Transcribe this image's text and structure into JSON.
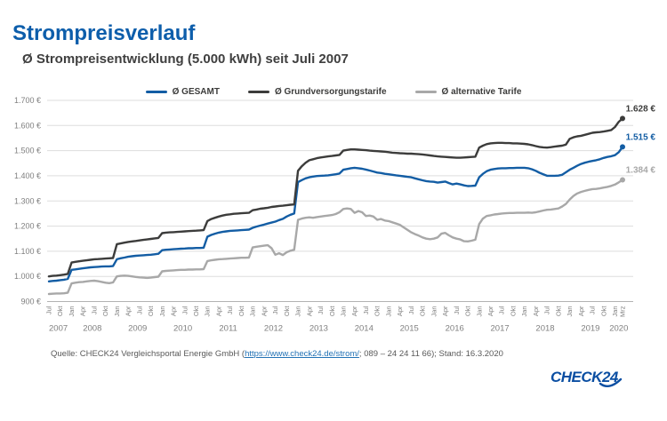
{
  "header": {
    "title": "Strompreisverlauf",
    "subtitle": "Ø Strompreisentwicklung (5.000 kWh) seit Juli 2007"
  },
  "source": {
    "prefix": "Quelle: CHECK24 Vergleichsportal Energie GmbH (",
    "link": "https://www.check24.de/strom/",
    "suffix": "; 089 – 24 24 11 66); Stand: 16.3.2020"
  },
  "logo": {
    "text": "CHECK24",
    "color": "#0a4ea2"
  },
  "colors": {
    "title_blue": "#0d5eab",
    "grid_line": "#dddddd",
    "axis_line": "#b3b3b3",
    "tick_text": "#7f7f7f",
    "subtitle_text": "#3f3f3f"
  },
  "chart_data": {
    "type": "line",
    "title": "Ø Strompreisentwicklung (5.000 kWh) seit Juli 2007",
    "x_start": "Jul 2007",
    "x_end": "Mrz 2020",
    "months_count": 153,
    "grid": "horizontal",
    "legend_position": "top",
    "y_axis": {
      "min": 900,
      "max": 1700,
      "step": 100,
      "unit": "€",
      "tick_labels": [
        "1.700 €",
        "1.600 €",
        "1.500 €",
        "1.400 €",
        "1.300 €",
        "1.200 €",
        "1.100 €",
        "1.000 €",
        "900 €"
      ]
    },
    "x_ticks": [
      [
        0,
        "Jul"
      ],
      [
        3,
        "Okt"
      ],
      [
        6,
        "Jan"
      ],
      [
        9,
        "Apr"
      ],
      [
        12,
        "Jul"
      ],
      [
        15,
        "Okt"
      ],
      [
        18,
        "Jan"
      ],
      [
        21,
        "Apr"
      ],
      [
        24,
        "Jul"
      ],
      [
        27,
        "Okt"
      ],
      [
        30,
        "Jan"
      ],
      [
        33,
        "Apr"
      ],
      [
        36,
        "Jul"
      ],
      [
        39,
        "Okt"
      ],
      [
        42,
        "Jan"
      ],
      [
        45,
        "Apr"
      ],
      [
        48,
        "Jul"
      ],
      [
        51,
        "Okt"
      ],
      [
        54,
        "Jan"
      ],
      [
        57,
        "Apr"
      ],
      [
        60,
        "Jul"
      ],
      [
        63,
        "Okt"
      ],
      [
        66,
        "Jan"
      ],
      [
        69,
        "Apr"
      ],
      [
        72,
        "Jul"
      ],
      [
        75,
        "Okt"
      ],
      [
        78,
        "Jan"
      ],
      [
        81,
        "Apr"
      ],
      [
        84,
        "Jul"
      ],
      [
        87,
        "Okt"
      ],
      [
        90,
        "Jan"
      ],
      [
        93,
        "Apr"
      ],
      [
        96,
        "Jul"
      ],
      [
        99,
        "Okt"
      ],
      [
        102,
        "Jan"
      ],
      [
        105,
        "Apr"
      ],
      [
        108,
        "Jul"
      ],
      [
        111,
        "Okt"
      ],
      [
        114,
        "Jan"
      ],
      [
        117,
        "Apr"
      ],
      [
        120,
        "Jul"
      ],
      [
        123,
        "Okt"
      ],
      [
        126,
        "Jan"
      ],
      [
        129,
        "Apr"
      ],
      [
        132,
        "Jul"
      ],
      [
        135,
        "Okt"
      ],
      [
        138,
        "Jan"
      ],
      [
        141,
        "Apr"
      ],
      [
        144,
        "Jul"
      ],
      [
        147,
        "Okt"
      ],
      [
        150,
        "Jan"
      ],
      [
        152,
        "Mrz"
      ]
    ],
    "year_labels": [
      [
        2.5,
        "2007"
      ],
      [
        11.5,
        "2008"
      ],
      [
        23.5,
        "2009"
      ],
      [
        35.5,
        "2010"
      ],
      [
        47.5,
        "2011"
      ],
      [
        59.5,
        "2012"
      ],
      [
        71.5,
        "2013"
      ],
      [
        83.5,
        "2014"
      ],
      [
        95.5,
        "2015"
      ],
      [
        107.5,
        "2016"
      ],
      [
        119.5,
        "2017"
      ],
      [
        131.5,
        "2018"
      ],
      [
        143.5,
        "2019"
      ],
      [
        151,
        "2020"
      ]
    ],
    "series": [
      {
        "name": "Ø GESAMT",
        "color": "#135da4",
        "end_label": "1.515 €",
        "values": [
          980,
          982,
          983,
          985,
          987,
          990,
          1026,
          1028,
          1030,
          1032,
          1034,
          1036,
          1037,
          1038,
          1039,
          1040,
          1040,
          1041,
          1068,
          1072,
          1075,
          1078,
          1080,
          1082,
          1083,
          1084,
          1085,
          1086,
          1088,
          1090,
          1104,
          1106,
          1107,
          1108,
          1109,
          1110,
          1111,
          1112,
          1112,
          1113,
          1113,
          1114,
          1158,
          1165,
          1170,
          1174,
          1177,
          1179,
          1181,
          1182,
          1183,
          1184,
          1185,
          1186,
          1193,
          1198,
          1202,
          1206,
          1210,
          1214,
          1218,
          1224,
          1229,
          1238,
          1245,
          1250,
          1375,
          1383,
          1390,
          1394,
          1397,
          1399,
          1400,
          1401,
          1402,
          1404,
          1406,
          1409,
          1424,
          1427,
          1430,
          1432,
          1430,
          1428,
          1425,
          1421,
          1417,
          1413,
          1411,
          1408,
          1406,
          1404,
          1402,
          1400,
          1398,
          1396,
          1394,
          1390,
          1386,
          1382,
          1379,
          1377,
          1376,
          1373,
          1375,
          1377,
          1371,
          1366,
          1369,
          1366,
          1362,
          1359,
          1360,
          1361,
          1394,
          1408,
          1418,
          1424,
          1427,
          1429,
          1430,
          1430,
          1431,
          1431,
          1432,
          1432,
          1432,
          1430,
          1426,
          1420,
          1412,
          1406,
          1400,
          1400,
          1400,
          1401,
          1404,
          1414,
          1424,
          1432,
          1440,
          1447,
          1452,
          1456,
          1459,
          1462,
          1466,
          1471,
          1475,
          1478,
          1482,
          1494,
          1515
        ]
      },
      {
        "name": "Ø Grundversorgungstarife",
        "color": "#3c3c3b",
        "end_label": "1.628 €",
        "values": [
          1000,
          1002,
          1003,
          1005,
          1007,
          1010,
          1055,
          1058,
          1060,
          1062,
          1064,
          1066,
          1068,
          1069,
          1070,
          1071,
          1072,
          1073,
          1128,
          1131,
          1134,
          1137,
          1139,
          1141,
          1143,
          1145,
          1147,
          1149,
          1151,
          1153,
          1172,
          1174,
          1175,
          1176,
          1177,
          1178,
          1179,
          1180,
          1181,
          1182,
          1183,
          1184,
          1220,
          1228,
          1233,
          1238,
          1242,
          1245,
          1247,
          1249,
          1250,
          1251,
          1252,
          1253,
          1263,
          1266,
          1269,
          1271,
          1273,
          1276,
          1278,
          1280,
          1281,
          1283,
          1285,
          1286,
          1420,
          1438,
          1452,
          1462,
          1466,
          1470,
          1473,
          1475,
          1477,
          1479,
          1481,
          1483,
          1500,
          1503,
          1505,
          1505,
          1504,
          1503,
          1502,
          1500,
          1499,
          1498,
          1497,
          1496,
          1494,
          1492,
          1491,
          1490,
          1489,
          1488,
          1488,
          1487,
          1486,
          1485,
          1483,
          1481,
          1479,
          1477,
          1476,
          1475,
          1474,
          1473,
          1472,
          1472,
          1473,
          1474,
          1475,
          1476,
          1512,
          1520,
          1526,
          1529,
          1530,
          1531,
          1531,
          1530,
          1530,
          1529,
          1529,
          1528,
          1527,
          1525,
          1522,
          1518,
          1515,
          1513,
          1512,
          1514,
          1516,
          1518,
          1520,
          1524,
          1547,
          1553,
          1557,
          1559,
          1563,
          1567,
          1571,
          1573,
          1574,
          1576,
          1579,
          1582,
          1594,
          1615,
          1628
        ]
      },
      {
        "name": "Ø alternative Tarife",
        "color": "#a8a8a8",
        "end_label": "1.384 €",
        "values": [
          930,
          931,
          932,
          932,
          933,
          935,
          972,
          975,
          977,
          978,
          980,
          982,
          983,
          981,
          978,
          975,
          973,
          976,
          1000,
          1002,
          1003,
          1002,
          1000,
          998,
          996,
          995,
          994,
          995,
          997,
          999,
          1020,
          1022,
          1023,
          1024,
          1025,
          1026,
          1026,
          1027,
          1027,
          1028,
          1028,
          1029,
          1061,
          1064,
          1066,
          1068,
          1069,
          1070,
          1071,
          1072,
          1073,
          1074,
          1074,
          1075,
          1115,
          1118,
          1120,
          1122,
          1124,
          1112,
          1086,
          1092,
          1085,
          1096,
          1102,
          1106,
          1225,
          1230,
          1233,
          1235,
          1233,
          1236,
          1238,
          1240,
          1242,
          1244,
          1248,
          1255,
          1268,
          1270,
          1268,
          1253,
          1260,
          1255,
          1240,
          1242,
          1238,
          1225,
          1228,
          1222,
          1220,
          1215,
          1210,
          1205,
          1195,
          1185,
          1175,
          1168,
          1162,
          1155,
          1150,
          1148,
          1150,
          1155,
          1170,
          1173,
          1163,
          1155,
          1150,
          1147,
          1140,
          1139,
          1142,
          1146,
          1208,
          1230,
          1240,
          1243,
          1246,
          1248,
          1250,
          1251,
          1252,
          1252,
          1253,
          1253,
          1253,
          1254,
          1253,
          1255,
          1258,
          1262,
          1265,
          1266,
          1268,
          1270,
          1278,
          1288,
          1306,
          1320,
          1330,
          1336,
          1340,
          1344,
          1347,
          1348,
          1350,
          1353,
          1356,
          1360,
          1365,
          1374,
          1384
        ]
      }
    ]
  }
}
